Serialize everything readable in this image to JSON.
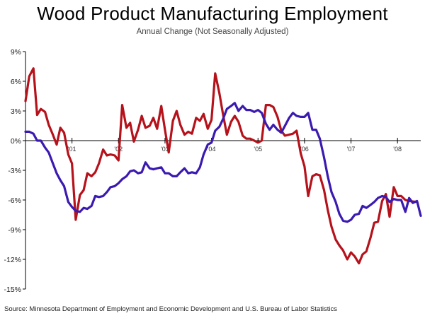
{
  "chart_data": {
    "type": "line",
    "title": "Wood Product Manufacturing Employment",
    "subtitle": "Annual Change (Not Seasonally Adjusted)",
    "source": "Source: Minnesota Department of Employment and Economic Development and U.S. Bureau of Labor Statistics",
    "ylim": [
      -15,
      9
    ],
    "y_ticks": [
      9,
      6,
      3,
      0,
      -3,
      -6,
      -9,
      -12,
      -15
    ],
    "y_tick_labels": [
      "9%",
      "6%",
      "3%",
      "0%",
      "-3%",
      "-6%",
      "-9%",
      "-12%",
      "-15%"
    ],
    "x_ticks": [
      2001,
      2002,
      2003,
      2004,
      2005,
      2006,
      2007,
      2008
    ],
    "x_tick_labels": [
      "'01",
      "'02",
      "'03",
      "'04",
      "'05",
      "'06",
      "'07",
      "'08"
    ],
    "xlim": [
      2000.0,
      2008.5
    ],
    "grid": false,
    "series": [
      {
        "color": "#3a1ab0",
        "points": [
          [
            2000.0,
            0.9
          ],
          [
            2000.08,
            0.9
          ],
          [
            2000.17,
            0.7
          ],
          [
            2000.25,
            0.0
          ],
          [
            2000.33,
            0.0
          ],
          [
            2000.42,
            -0.7
          ],
          [
            2000.5,
            -1.2
          ],
          [
            2000.58,
            -2.2
          ],
          [
            2000.67,
            -3.3
          ],
          [
            2000.75,
            -4.0
          ],
          [
            2000.83,
            -4.6
          ],
          [
            2000.92,
            -6.2
          ],
          [
            2001.0,
            -6.7
          ],
          [
            2001.08,
            -7.1
          ],
          [
            2001.17,
            -7.2
          ],
          [
            2001.25,
            -6.8
          ],
          [
            2001.33,
            -6.9
          ],
          [
            2001.42,
            -6.6
          ],
          [
            2001.5,
            -5.6
          ],
          [
            2001.58,
            -5.7
          ],
          [
            2001.67,
            -5.6
          ],
          [
            2001.75,
            -5.2
          ],
          [
            2001.83,
            -4.7
          ],
          [
            2001.92,
            -4.6
          ],
          [
            2002.0,
            -4.3
          ],
          [
            2002.08,
            -3.9
          ],
          [
            2002.17,
            -3.6
          ],
          [
            2002.25,
            -3.1
          ],
          [
            2002.33,
            -3.0
          ],
          [
            2002.42,
            -3.3
          ],
          [
            2002.5,
            -3.2
          ],
          [
            2002.58,
            -2.2
          ],
          [
            2002.67,
            -2.8
          ],
          [
            2002.75,
            -2.9
          ],
          [
            2002.83,
            -2.8
          ],
          [
            2002.92,
            -2.7
          ],
          [
            2003.0,
            -3.3
          ],
          [
            2003.08,
            -3.3
          ],
          [
            2003.17,
            -3.6
          ],
          [
            2003.25,
            -3.6
          ],
          [
            2003.33,
            -3.2
          ],
          [
            2003.42,
            -2.8
          ],
          [
            2003.5,
            -3.3
          ],
          [
            2003.58,
            -3.2
          ],
          [
            2003.67,
            -3.3
          ],
          [
            2003.75,
            -2.7
          ],
          [
            2003.83,
            -1.4
          ],
          [
            2003.92,
            -0.4
          ],
          [
            2004.0,
            -0.2
          ],
          [
            2004.08,
            1.0
          ],
          [
            2004.17,
            1.4
          ],
          [
            2004.25,
            2.2
          ],
          [
            2004.33,
            3.2
          ],
          [
            2004.42,
            3.5
          ],
          [
            2004.5,
            3.8
          ],
          [
            2004.58,
            3.0
          ],
          [
            2004.67,
            3.5
          ],
          [
            2004.75,
            3.1
          ],
          [
            2004.83,
            3.1
          ],
          [
            2004.92,
            2.9
          ],
          [
            2005.0,
            3.1
          ],
          [
            2005.08,
            2.8
          ],
          [
            2005.17,
            1.7
          ],
          [
            2005.25,
            1.1
          ],
          [
            2005.33,
            1.6
          ],
          [
            2005.42,
            1.1
          ],
          [
            2005.5,
            0.8
          ],
          [
            2005.58,
            1.5
          ],
          [
            2005.67,
            2.3
          ],
          [
            2005.75,
            2.8
          ],
          [
            2005.83,
            2.5
          ],
          [
            2005.92,
            2.4
          ],
          [
            2006.0,
            2.4
          ],
          [
            2006.08,
            2.8
          ],
          [
            2006.17,
            1.1
          ],
          [
            2006.25,
            1.1
          ],
          [
            2006.33,
            0.2
          ],
          [
            2006.42,
            -1.7
          ],
          [
            2006.5,
            -3.6
          ],
          [
            2006.58,
            -5.2
          ],
          [
            2006.67,
            -6.2
          ],
          [
            2006.75,
            -7.4
          ],
          [
            2006.83,
            -8.1
          ],
          [
            2006.92,
            -8.2
          ],
          [
            2007.0,
            -8.0
          ],
          [
            2007.08,
            -7.5
          ],
          [
            2007.17,
            -7.4
          ],
          [
            2007.25,
            -6.6
          ],
          [
            2007.33,
            -6.8
          ],
          [
            2007.42,
            -6.5
          ],
          [
            2007.5,
            -6.2
          ],
          [
            2007.58,
            -5.8
          ],
          [
            2007.67,
            -5.6
          ],
          [
            2007.75,
            -5.7
          ],
          [
            2007.83,
            -6.2
          ],
          [
            2007.92,
            -5.9
          ],
          [
            2008.0,
            -6.0
          ],
          [
            2008.08,
            -6.0
          ],
          [
            2008.17,
            -7.2
          ],
          [
            2008.25,
            -5.8
          ],
          [
            2008.33,
            -6.3
          ],
          [
            2008.42,
            -6.1
          ],
          [
            2008.5,
            -7.6
          ]
        ]
      },
      {
        "color": "#b5121b",
        "points": [
          [
            2000.0,
            4.0
          ],
          [
            2000.08,
            6.5
          ],
          [
            2000.17,
            7.3
          ],
          [
            2000.25,
            2.6
          ],
          [
            2000.33,
            3.2
          ],
          [
            2000.42,
            2.9
          ],
          [
            2000.5,
            1.6
          ],
          [
            2000.58,
            0.7
          ],
          [
            2000.67,
            -0.4
          ],
          [
            2000.75,
            1.3
          ],
          [
            2000.83,
            0.8
          ],
          [
            2000.92,
            -1.4
          ],
          [
            2001.0,
            -2.3
          ],
          [
            2001.08,
            -8.0
          ],
          [
            2001.17,
            -5.5
          ],
          [
            2001.25,
            -5.0
          ],
          [
            2001.33,
            -3.3
          ],
          [
            2001.42,
            -3.6
          ],
          [
            2001.5,
            -3.2
          ],
          [
            2001.58,
            -2.3
          ],
          [
            2001.67,
            -0.9
          ],
          [
            2001.75,
            -1.5
          ],
          [
            2001.83,
            -1.4
          ],
          [
            2001.92,
            -1.5
          ],
          [
            2002.0,
            -2.0
          ],
          [
            2002.08,
            3.6
          ],
          [
            2002.17,
            1.3
          ],
          [
            2002.25,
            1.8
          ],
          [
            2002.33,
            -0.1
          ],
          [
            2002.42,
            1.1
          ],
          [
            2002.5,
            2.5
          ],
          [
            2002.58,
            1.3
          ],
          [
            2002.67,
            1.5
          ],
          [
            2002.75,
            2.3
          ],
          [
            2002.83,
            1.2
          ],
          [
            2002.92,
            3.5
          ],
          [
            2003.0,
            1.1
          ],
          [
            2003.08,
            -1.2
          ],
          [
            2003.17,
            2.0
          ],
          [
            2003.25,
            3.0
          ],
          [
            2003.33,
            1.6
          ],
          [
            2003.42,
            0.6
          ],
          [
            2003.5,
            0.9
          ],
          [
            2003.58,
            0.7
          ],
          [
            2003.67,
            2.3
          ],
          [
            2003.75,
            2.0
          ],
          [
            2003.83,
            2.7
          ],
          [
            2003.92,
            1.2
          ],
          [
            2004.0,
            2.1
          ],
          [
            2004.08,
            6.8
          ],
          [
            2004.17,
            4.8
          ],
          [
            2004.25,
            2.6
          ],
          [
            2004.33,
            0.6
          ],
          [
            2004.42,
            1.9
          ],
          [
            2004.5,
            2.5
          ],
          [
            2004.58,
            1.9
          ],
          [
            2004.67,
            0.5
          ],
          [
            2004.75,
            0.2
          ],
          [
            2004.83,
            0.2
          ],
          [
            2004.92,
            0.0
          ],
          [
            2005.0,
            -0.2
          ],
          [
            2005.08,
            0.0
          ],
          [
            2005.17,
            3.6
          ],
          [
            2005.25,
            3.6
          ],
          [
            2005.33,
            3.4
          ],
          [
            2005.42,
            2.4
          ],
          [
            2005.5,
            1.0
          ],
          [
            2005.58,
            0.5
          ],
          [
            2005.67,
            0.6
          ],
          [
            2005.75,
            0.7
          ],
          [
            2005.83,
            1.0
          ],
          [
            2005.92,
            -1.3
          ],
          [
            2006.0,
            -2.6
          ],
          [
            2006.08,
            -5.6
          ],
          [
            2006.17,
            -3.6
          ],
          [
            2006.25,
            -3.4
          ],
          [
            2006.33,
            -3.5
          ],
          [
            2006.42,
            -5.0
          ],
          [
            2006.5,
            -7.0
          ],
          [
            2006.58,
            -8.7
          ],
          [
            2006.67,
            -10.0
          ],
          [
            2006.75,
            -10.6
          ],
          [
            2006.83,
            -11.1
          ],
          [
            2006.92,
            -12.0
          ],
          [
            2007.0,
            -11.3
          ],
          [
            2007.08,
            -11.7
          ],
          [
            2007.17,
            -12.4
          ],
          [
            2007.25,
            -11.5
          ],
          [
            2007.33,
            -11.2
          ],
          [
            2007.42,
            -9.8
          ],
          [
            2007.5,
            -8.3
          ],
          [
            2007.58,
            -8.2
          ],
          [
            2007.67,
            -6.1
          ],
          [
            2007.75,
            -5.4
          ],
          [
            2007.83,
            -7.7
          ],
          [
            2007.92,
            -4.7
          ],
          [
            2008.0,
            -5.6
          ],
          [
            2008.08,
            -5.6
          ],
          [
            2008.17,
            -6.0
          ],
          [
            2008.25,
            -6.1
          ],
          [
            2008.42,
            -6.2
          ]
        ]
      }
    ]
  }
}
